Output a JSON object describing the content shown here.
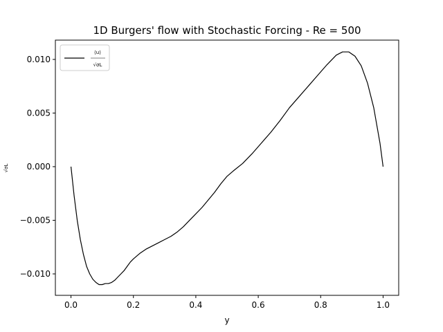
{
  "chart_data": {
    "type": "line",
    "title": "1D Burgers' flow with Stochastic Forcing - Re = 500",
    "xlabel": "y",
    "ylabel": "√σL",
    "xlim": [
      -0.05,
      1.05
    ],
    "ylim": [
      -0.012,
      0.0118
    ],
    "grid": false,
    "legend_position": "top-left",
    "xticks": [
      {
        "value": 0.0,
        "label": "0.0"
      },
      {
        "value": 0.2,
        "label": "0.2"
      },
      {
        "value": 0.4,
        "label": "0.4"
      },
      {
        "value": 0.6,
        "label": "0.6"
      },
      {
        "value": 0.8,
        "label": "0.8"
      },
      {
        "value": 1.0,
        "label": "1.0"
      }
    ],
    "yticks": [
      {
        "value": 0.01,
        "label": "0.010"
      },
      {
        "value": 0.005,
        "label": "0.005"
      },
      {
        "value": 0.0,
        "label": "0.000"
      },
      {
        "value": -0.005,
        "label": "−0.005"
      },
      {
        "value": -0.01,
        "label": "−0.010"
      }
    ],
    "series": [
      {
        "name_numerator": "⟨u⟩",
        "name_denominator": "√σL",
        "color": "#000000",
        "x": [
          0.0,
          0.01,
          0.02,
          0.03,
          0.04,
          0.05,
          0.06,
          0.07,
          0.08,
          0.09,
          0.1,
          0.11,
          0.12,
          0.13,
          0.14,
          0.15,
          0.16,
          0.17,
          0.18,
          0.19,
          0.2,
          0.22,
          0.24,
          0.26,
          0.28,
          0.3,
          0.32,
          0.34,
          0.36,
          0.38,
          0.4,
          0.42,
          0.44,
          0.46,
          0.48,
          0.5,
          0.52,
          0.55,
          0.58,
          0.61,
          0.64,
          0.67,
          0.7,
          0.73,
          0.76,
          0.79,
          0.82,
          0.85,
          0.87,
          0.89,
          0.91,
          0.93,
          0.95,
          0.97,
          0.99,
          1.0
        ],
        "y": [
          0.0,
          -0.0027,
          -0.005,
          -0.0068,
          -0.0082,
          -0.0093,
          -0.01,
          -0.0105,
          -0.0108,
          -0.011,
          -0.011,
          -0.0109,
          -0.0109,
          -0.0108,
          -0.0106,
          -0.0103,
          -0.01,
          -0.0097,
          -0.0093,
          -0.0089,
          -0.0086,
          -0.0081,
          -0.0077,
          -0.0074,
          -0.0071,
          -0.0068,
          -0.0065,
          -0.0061,
          -0.0056,
          -0.005,
          -0.0044,
          -0.0038,
          -0.0031,
          -0.0024,
          -0.0016,
          -0.0009,
          -0.0004,
          0.0003,
          0.0012,
          0.0022,
          0.0032,
          0.0043,
          0.0055,
          0.0065,
          0.0075,
          0.0085,
          0.0095,
          0.0104,
          0.0107,
          0.0107,
          0.0103,
          0.0094,
          0.0078,
          0.0055,
          0.0022,
          0.0
        ]
      }
    ]
  }
}
